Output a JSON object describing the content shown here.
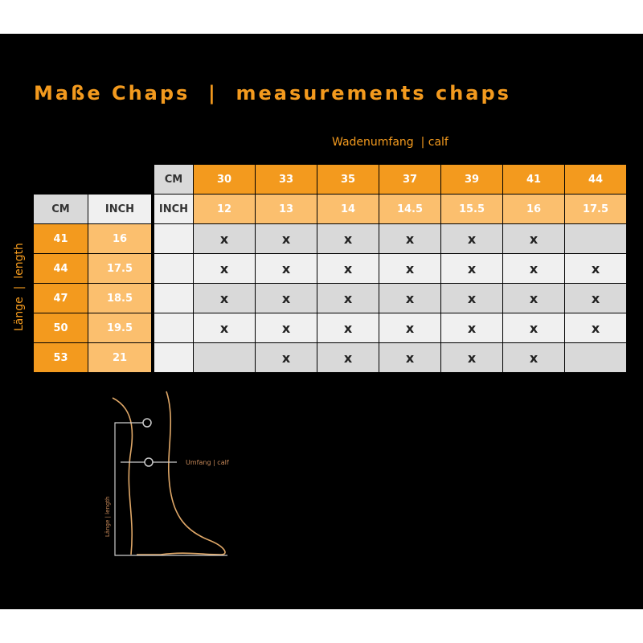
{
  "title": "Maße Chaps  |  measurements chaps",
  "calf_label": "Wadenumfang  | calf",
  "length_label": "Länge  |  length",
  "left_table": {
    "headers": [
      "CM",
      "INCH"
    ],
    "rows": [
      [
        "41",
        "16"
      ],
      [
        "44",
        "17.5"
      ],
      [
        "47",
        "18.5"
      ],
      [
        "50",
        "19.5"
      ],
      [
        "53",
        "21"
      ]
    ]
  },
  "right_table": {
    "row_labels": [
      "CM",
      "INCH"
    ],
    "cm": [
      "30",
      "33",
      "35",
      "37",
      "39",
      "41",
      "44"
    ],
    "inch": [
      "12",
      "13",
      "14",
      "14.5",
      "15.5",
      "16",
      "17.5"
    ],
    "availability": [
      [
        "x",
        "x",
        "x",
        "x",
        "x",
        "x",
        ""
      ],
      [
        "x",
        "x",
        "x",
        "x",
        "x",
        "x",
        "x"
      ],
      [
        "x",
        "x",
        "x",
        "x",
        "x",
        "x",
        "x"
      ],
      [
        "x",
        "x",
        "x",
        "x",
        "x",
        "x",
        "x"
      ],
      [
        "",
        "x",
        "x",
        "x",
        "x",
        "x",
        ""
      ]
    ]
  },
  "diagram": {
    "calf_label": "Umfang | calf",
    "length_label": "Länge | length"
  },
  "colors": {
    "dark_orange": "#f39a1e",
    "light_orange": "#fbbf6e",
    "gray": "#d9d9d9",
    "pale": "#f0f0f0",
    "background": "#000000"
  }
}
